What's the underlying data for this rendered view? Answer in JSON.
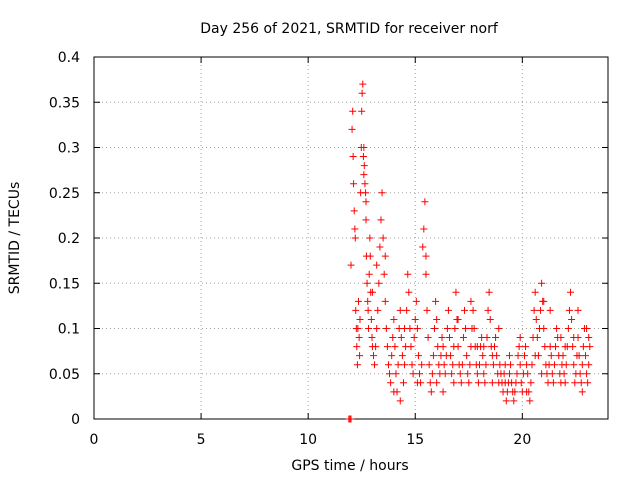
{
  "chart_data": {
    "type": "scatter",
    "title": "Day 256 of 2021, SRMTID for receiver norf",
    "xlabel": "GPS time / hours",
    "ylabel": "SRMTID / TECUs",
    "xlim": [
      0,
      24
    ],
    "ylim": [
      0,
      0.4
    ],
    "grid": true,
    "x_ticks": [
      "0",
      "5",
      "10",
      "15",
      "20"
    ],
    "y_ticks": [
      "0",
      "0.05",
      "0.1",
      "0.15",
      "0.2",
      "0.25",
      "0.3",
      "0.35",
      "0.4"
    ],
    "marker": "+",
    "color": "#ff0000",
    "series": [
      {
        "points": [
          [
            11.9,
            0.0
          ],
          [
            11.95,
            0.0
          ],
          [
            12.0,
            0.0
          ],
          [
            12.0,
            0.17
          ],
          [
            12.05,
            0.32
          ],
          [
            12.08,
            0.34
          ],
          [
            12.1,
            0.29
          ],
          [
            12.12,
            0.26
          ],
          [
            12.15,
            0.23
          ],
          [
            12.18,
            0.21
          ],
          [
            12.2,
            0.2
          ],
          [
            12.22,
            0.12
          ],
          [
            12.25,
            0.1
          ],
          [
            12.27,
            0.08
          ],
          [
            12.3,
            0.06
          ],
          [
            12.32,
            0.1
          ],
          [
            12.35,
            0.13
          ],
          [
            12.38,
            0.09
          ],
          [
            12.4,
            0.07
          ],
          [
            12.42,
            0.11
          ],
          [
            12.45,
            0.25
          ],
          [
            12.48,
            0.3
          ],
          [
            12.5,
            0.34
          ],
          [
            12.52,
            0.36
          ],
          [
            12.55,
            0.37
          ],
          [
            12.58,
            0.29
          ],
          [
            12.6,
            0.27
          ],
          [
            12.62,
            0.28
          ],
          [
            12.65,
            0.26
          ],
          [
            12.68,
            0.25
          ],
          [
            12.7,
            0.22
          ],
          [
            12.72,
            0.18
          ],
          [
            12.75,
            0.15
          ],
          [
            12.78,
            0.13
          ],
          [
            12.8,
            0.12
          ],
          [
            12.82,
            0.1
          ],
          [
            12.85,
            0.16
          ],
          [
            12.88,
            0.2
          ],
          [
            12.9,
            0.18
          ],
          [
            12.92,
            0.14
          ],
          [
            12.95,
            0.11
          ],
          [
            12.98,
            0.09
          ],
          [
            13.0,
            0.08
          ],
          [
            13.05,
            0.07
          ],
          [
            13.1,
            0.06
          ],
          [
            13.15,
            0.08
          ],
          [
            13.2,
            0.1
          ],
          [
            13.25,
            0.12
          ],
          [
            13.3,
            0.15
          ],
          [
            13.35,
            0.19
          ],
          [
            13.4,
            0.22
          ],
          [
            13.45,
            0.25
          ],
          [
            13.5,
            0.2
          ],
          [
            13.55,
            0.16
          ],
          [
            13.6,
            0.13
          ],
          [
            13.65,
            0.1
          ],
          [
            13.7,
            0.08
          ],
          [
            13.75,
            0.06
          ],
          [
            13.8,
            0.05
          ],
          [
            13.85,
            0.04
          ],
          [
            13.9,
            0.07
          ],
          [
            13.95,
            0.09
          ],
          [
            14.0,
            0.11
          ],
          [
            14.05,
            0.08
          ],
          [
            14.1,
            0.05
          ],
          [
            14.15,
            0.03
          ],
          [
            14.2,
            0.06
          ],
          [
            14.25,
            0.1
          ],
          [
            14.3,
            0.12
          ],
          [
            14.35,
            0.09
          ],
          [
            14.4,
            0.07
          ],
          [
            14.45,
            0.04
          ],
          [
            14.5,
            0.06
          ],
          [
            14.55,
            0.08
          ],
          [
            14.6,
            0.12
          ],
          [
            14.65,
            0.16
          ],
          [
            14.7,
            0.14
          ],
          [
            14.75,
            0.1
          ],
          [
            14.8,
            0.08
          ],
          [
            14.85,
            0.06
          ],
          [
            14.9,
            0.05
          ],
          [
            14.95,
            0.09
          ],
          [
            15.0,
            0.11
          ],
          [
            15.05,
            0.13
          ],
          [
            15.1,
            0.1
          ],
          [
            15.15,
            0.07
          ],
          [
            15.2,
            0.05
          ],
          [
            15.25,
            0.04
          ],
          [
            15.3,
            0.06
          ],
          [
            15.35,
            0.19
          ],
          [
            15.4,
            0.21
          ],
          [
            15.45,
            0.24
          ],
          [
            15.5,
            0.16
          ],
          [
            15.55,
            0.12
          ],
          [
            15.6,
            0.09
          ],
          [
            15.65,
            0.06
          ],
          [
            15.7,
            0.04
          ],
          [
            15.75,
            0.03
          ],
          [
            15.8,
            0.05
          ],
          [
            15.85,
            0.07
          ],
          [
            15.9,
            0.1
          ],
          [
            15.95,
            0.13
          ],
          [
            16.0,
            0.11
          ],
          [
            16.05,
            0.08
          ],
          [
            16.1,
            0.06
          ],
          [
            16.15,
            0.05
          ],
          [
            16.2,
            0.07
          ],
          [
            16.25,
            0.09
          ],
          [
            16.3,
            0.08
          ],
          [
            16.35,
            0.06
          ],
          [
            16.4,
            0.05
          ],
          [
            16.45,
            0.07
          ],
          [
            16.5,
            0.1
          ],
          [
            16.55,
            0.12
          ],
          [
            16.6,
            0.09
          ],
          [
            16.65,
            0.07
          ],
          [
            16.7,
            0.05
          ],
          [
            16.75,
            0.06
          ],
          [
            16.8,
            0.08
          ],
          [
            16.85,
            0.1
          ],
          [
            16.9,
            0.14
          ],
          [
            16.95,
            0.11
          ],
          [
            17.0,
            0.08
          ],
          [
            17.05,
            0.06
          ],
          [
            17.1,
            0.05
          ],
          [
            17.15,
            0.04
          ],
          [
            17.2,
            0.06
          ],
          [
            17.25,
            0.09
          ],
          [
            17.3,
            0.12
          ],
          [
            17.35,
            0.1
          ],
          [
            17.4,
            0.07
          ],
          [
            17.45,
            0.05
          ],
          [
            17.5,
            0.04
          ],
          [
            17.55,
            0.06
          ],
          [
            17.6,
            0.08
          ],
          [
            17.65,
            0.1
          ],
          [
            17.7,
            0.12
          ],
          [
            17.75,
            0.1
          ],
          [
            17.8,
            0.08
          ],
          [
            17.85,
            0.06
          ],
          [
            17.9,
            0.05
          ],
          [
            17.95,
            0.04
          ],
          [
            18.0,
            0.06
          ],
          [
            18.05,
            0.08
          ],
          [
            18.1,
            0.09
          ],
          [
            18.15,
            0.07
          ],
          [
            18.2,
            0.05
          ],
          [
            18.25,
            0.04
          ],
          [
            18.3,
            0.06
          ],
          [
            18.35,
            0.09
          ],
          [
            18.4,
            0.12
          ],
          [
            18.45,
            0.14
          ],
          [
            18.5,
            0.11
          ],
          [
            18.55,
            0.08
          ],
          [
            18.6,
            0.07
          ],
          [
            18.65,
            0.06
          ],
          [
            18.7,
            0.08
          ],
          [
            18.75,
            0.09
          ],
          [
            18.8,
            0.07
          ],
          [
            18.85,
            0.05
          ],
          [
            18.9,
            0.04
          ],
          [
            18.95,
            0.06
          ],
          [
            19.0,
            0.05
          ],
          [
            19.05,
            0.04
          ],
          [
            19.1,
            0.03
          ],
          [
            19.15,
            0.05
          ],
          [
            19.2,
            0.04
          ],
          [
            19.25,
            0.02
          ],
          [
            19.3,
            0.03
          ],
          [
            19.35,
            0.04
          ],
          [
            19.4,
            0.05
          ],
          [
            19.45,
            0.06
          ],
          [
            19.5,
            0.04
          ],
          [
            19.55,
            0.03
          ],
          [
            19.6,
            0.02
          ],
          [
            19.65,
            0.03
          ],
          [
            19.7,
            0.04
          ],
          [
            19.75,
            0.05
          ],
          [
            19.8,
            0.07
          ],
          [
            19.85,
            0.08
          ],
          [
            19.9,
            0.06
          ],
          [
            19.95,
            0.04
          ],
          [
            20.0,
            0.03
          ],
          [
            20.05,
            0.05
          ],
          [
            20.1,
            0.07
          ],
          [
            20.15,
            0.08
          ],
          [
            20.2,
            0.06
          ],
          [
            20.25,
            0.05
          ],
          [
            20.3,
            0.03
          ],
          [
            20.35,
            0.02
          ],
          [
            20.4,
            0.04
          ],
          [
            20.45,
            0.06
          ],
          [
            20.5,
            0.09
          ],
          [
            20.55,
            0.12
          ],
          [
            20.6,
            0.14
          ],
          [
            20.65,
            0.11
          ],
          [
            20.7,
            0.09
          ],
          [
            20.75,
            0.07
          ],
          [
            20.8,
            0.1
          ],
          [
            20.85,
            0.12
          ],
          [
            20.9,
            0.15
          ],
          [
            20.95,
            0.13
          ],
          [
            21.0,
            0.1
          ],
          [
            21.05,
            0.08
          ],
          [
            21.1,
            0.06
          ],
          [
            21.15,
            0.05
          ],
          [
            21.2,
            0.04
          ],
          [
            21.25,
            0.06
          ],
          [
            21.3,
            0.08
          ],
          [
            21.35,
            0.07
          ],
          [
            21.4,
            0.05
          ],
          [
            21.45,
            0.04
          ],
          [
            21.5,
            0.06
          ],
          [
            21.55,
            0.08
          ],
          [
            21.6,
            0.1
          ],
          [
            21.65,
            0.09
          ],
          [
            21.7,
            0.07
          ],
          [
            21.75,
            0.05
          ],
          [
            21.8,
            0.04
          ],
          [
            21.85,
            0.06
          ],
          [
            21.9,
            0.07
          ],
          [
            21.95,
            0.05
          ],
          [
            22.0,
            0.04
          ],
          [
            22.05,
            0.06
          ],
          [
            22.1,
            0.08
          ],
          [
            22.15,
            0.1
          ],
          [
            22.2,
            0.12
          ],
          [
            22.25,
            0.14
          ],
          [
            22.3,
            0.11
          ],
          [
            22.35,
            0.08
          ],
          [
            22.4,
            0.06
          ],
          [
            22.45,
            0.04
          ],
          [
            22.5,
            0.05
          ],
          [
            22.55,
            0.07
          ],
          [
            22.6,
            0.09
          ],
          [
            22.65,
            0.07
          ],
          [
            22.7,
            0.05
          ],
          [
            22.75,
            0.04
          ],
          [
            22.8,
            0.06
          ],
          [
            22.85,
            0.08
          ],
          [
            22.9,
            0.1
          ],
          [
            22.95,
            0.07
          ],
          [
            23.0,
            0.05
          ],
          [
            23.05,
            0.04
          ],
          [
            23.1,
            0.06
          ],
          [
            23.15,
            0.08
          ],
          [
            12.6,
            0.3
          ],
          [
            12.7,
            0.24
          ],
          [
            13.2,
            0.17
          ],
          [
            13.6,
            0.18
          ],
          [
            14.0,
            0.03
          ],
          [
            14.3,
            0.02
          ],
          [
            15.5,
            0.18
          ],
          [
            16.0,
            0.04
          ],
          [
            16.3,
            0.03
          ],
          [
            17.0,
            0.11
          ],
          [
            17.6,
            0.13
          ],
          [
            18.2,
            0.08
          ],
          [
            18.9,
            0.1
          ],
          [
            19.4,
            0.07
          ],
          [
            19.9,
            0.09
          ],
          [
            20.6,
            0.07
          ],
          [
            20.9,
            0.05
          ],
          [
            21.3,
            0.12
          ],
          [
            21.8,
            0.09
          ],
          [
            22.4,
            0.09
          ],
          [
            22.8,
            0.03
          ],
          [
            23.1,
            0.09
          ],
          [
            13.0,
            0.14
          ],
          [
            14.5,
            0.1
          ],
          [
            15.1,
            0.04
          ],
          [
            16.8,
            0.04
          ],
          [
            17.9,
            0.08
          ],
          [
            18.6,
            0.04
          ],
          [
            19.2,
            0.06
          ],
          [
            20.2,
            0.03
          ],
          [
            21.0,
            0.13
          ],
          [
            22.0,
            0.08
          ],
          [
            22.6,
            0.12
          ],
          [
            23.0,
            0.1
          ]
        ]
      }
    ]
  }
}
